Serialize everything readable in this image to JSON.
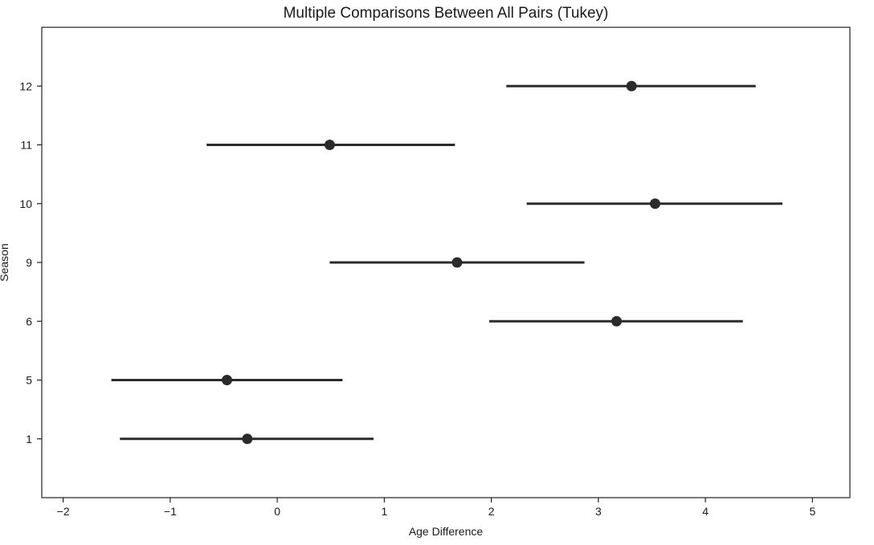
{
  "chart_data": {
    "type": "scatter",
    "title": "Multiple Comparisons Between All Pairs (Tukey)",
    "xlabel": "Age Difference",
    "ylabel": "Season",
    "xlim": [
      -2.2,
      5.35
    ],
    "x_ticks": [
      -2,
      -1,
      0,
      1,
      2,
      3,
      4,
      5
    ],
    "x_tick_labels": [
      "−2",
      "−1",
      "0",
      "1",
      "2",
      "3",
      "4",
      "5"
    ],
    "categories": [
      "1",
      "5",
      "6",
      "9",
      "10",
      "11",
      "12"
    ],
    "grid": false,
    "legend": "none",
    "series": [
      {
        "points": [
          {
            "category": "1",
            "mean": -0.28,
            "lower": -1.47,
            "upper": 0.9
          },
          {
            "category": "5",
            "mean": -0.47,
            "lower": -1.55,
            "upper": 0.61
          },
          {
            "category": "6",
            "mean": 3.17,
            "lower": 1.98,
            "upper": 4.35
          },
          {
            "category": "9",
            "mean": 1.68,
            "lower": 0.49,
            "upper": 2.87
          },
          {
            "category": "10",
            "mean": 3.53,
            "lower": 2.33,
            "upper": 4.72
          },
          {
            "category": "11",
            "mean": 0.49,
            "lower": -0.66,
            "upper": 1.66
          },
          {
            "category": "12",
            "mean": 3.31,
            "lower": 2.14,
            "upper": 4.47
          }
        ]
      }
    ],
    "colors": {
      "marks": "#2b2b2b",
      "axes": "#222222"
    }
  }
}
